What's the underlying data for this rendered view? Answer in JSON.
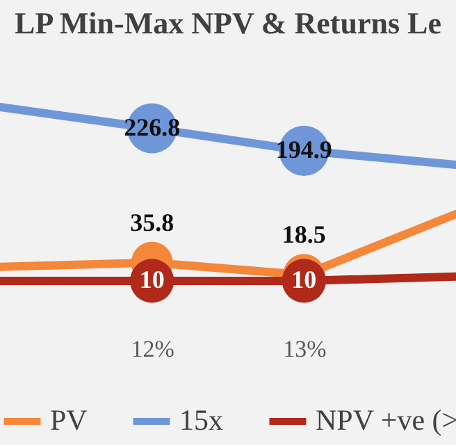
{
  "chart_data": {
    "type": "line",
    "title": "LP Min-Max NPV & Returns Le",
    "categories": [
      null,
      "12%",
      "13%",
      null
    ],
    "series": [
      {
        "name": "PV",
        "color": "#f5873a",
        "values": [
          30,
          35.8,
          18.5,
          105
        ],
        "value_labels": [
          null,
          "35.8",
          "18.5",
          null
        ]
      },
      {
        "name": "15x",
        "color": "#6f96d8",
        "values": [
          257,
          226.8,
          194.9,
          175
        ],
        "value_labels": [
          null,
          "226.8",
          "194.9",
          null
        ]
      },
      {
        "name": "NPV +ve (>",
        "color": "#b0291b",
        "values": [
          10,
          10,
          10,
          16
        ],
        "value_labels": [
          null,
          "10",
          "10",
          null
        ]
      }
    ],
    "tick_labels": "x",
    "legend": "bottom",
    "marker": "circle",
    "line_style": "solid"
  }
}
